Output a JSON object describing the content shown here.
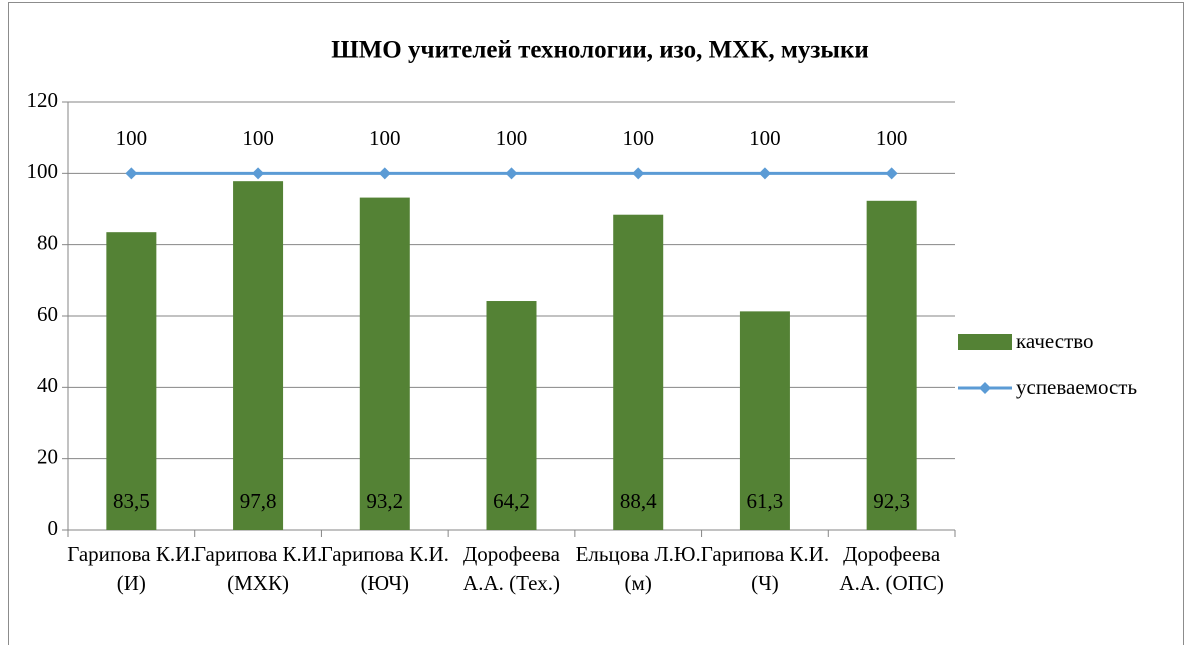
{
  "chart_data": {
    "type": "bar",
    "title": "ШМО учителей технологии, изо, МХК, музыки",
    "categories": [
      "Гарипова К.И. (И)",
      "Гарипова К.И. (МХК)",
      "Гарипова К.И. (ЮЧ)",
      "Дорофеева А.А. (Тех.)",
      "Ельцова Л.Ю. (м)",
      "Гарипова К.И. (Ч)",
      "Дорофеева А.А. (ОПС)"
    ],
    "series": [
      {
        "name": "качество",
        "type": "bar",
        "color": "#548235",
        "values": [
          83.5,
          97.8,
          93.2,
          64.2,
          88.4,
          61.3,
          92.3
        ],
        "value_labels": [
          "83,5",
          "97,8",
          "93,2",
          "64,2",
          "88,4",
          "61,3",
          "92,3"
        ]
      },
      {
        "name": "успеваемость",
        "type": "line",
        "color": "#5b9bd5",
        "values": [
          100,
          100,
          100,
          100,
          100,
          100,
          100
        ]
      }
    ],
    "ylim": [
      0,
      120
    ],
    "yticks": [
      0,
      20,
      40,
      60,
      80,
      100,
      120
    ],
    "grid": true,
    "legend": "right"
  }
}
